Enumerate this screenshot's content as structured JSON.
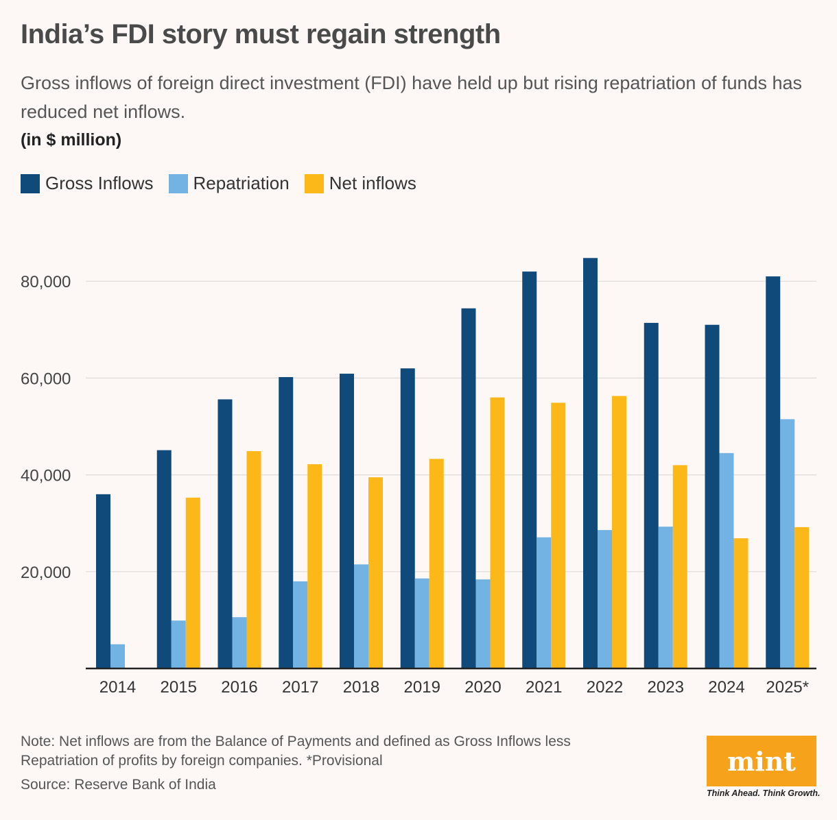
{
  "header": {
    "title": "India’s FDI story must regain strength",
    "subtitle": "Gross inflows of foreign direct investment (FDI) have held up but rising repatriation of funds has reduced net inflows.",
    "unit": "(in $ million)"
  },
  "colors": {
    "gross": "#0f4a7a",
    "repatriation": "#72b3e3",
    "net": "#fbb818",
    "brand": "#f6a31b"
  },
  "legend": [
    {
      "label": "Gross Inflows",
      "color": "#0f4a7a"
    },
    {
      "label": "Repatriation",
      "color": "#72b3e3"
    },
    {
      "label": "Net inflows",
      "color": "#fbb818"
    }
  ],
  "chart_data": {
    "type": "bar",
    "categories": [
      "2014",
      "2015",
      "2016",
      "2017",
      "2018",
      "2019",
      "2020",
      "2021",
      "2022",
      "2023",
      "2024",
      "2025*"
    ],
    "series": [
      {
        "name": "Gross Inflows",
        "values": [
          36000,
          45100,
          55600,
          60200,
          60900,
          62000,
          74400,
          82000,
          84800,
          71400,
          71000,
          81000
        ]
      },
      {
        "name": "Repatriation",
        "values": [
          5000,
          9900,
          10600,
          18000,
          21500,
          18600,
          18400,
          27100,
          28600,
          29300,
          44500,
          51500
        ]
      },
      {
        "name": "Net inflows",
        "values": [
          null,
          35300,
          44900,
          42200,
          39500,
          43300,
          56000,
          54900,
          56300,
          42000,
          26900,
          29200
        ]
      }
    ],
    "yticks": [
      20000,
      40000,
      60000,
      80000
    ],
    "ytick_labels": [
      "20,000",
      "40,000",
      "60,000",
      "80,000"
    ],
    "ylim": [
      0,
      90000
    ],
    "grid": true,
    "legend_position": "top-left"
  },
  "footer": {
    "note": "Note: Net inflows are from the Balance of Payments and defined as Gross Inflows less Repatriation of profits by foreign companies. *Provisional",
    "source": "Source: Reserve Bank of India",
    "logo": "mint",
    "tagline": "Think Ahead. Think Growth."
  }
}
